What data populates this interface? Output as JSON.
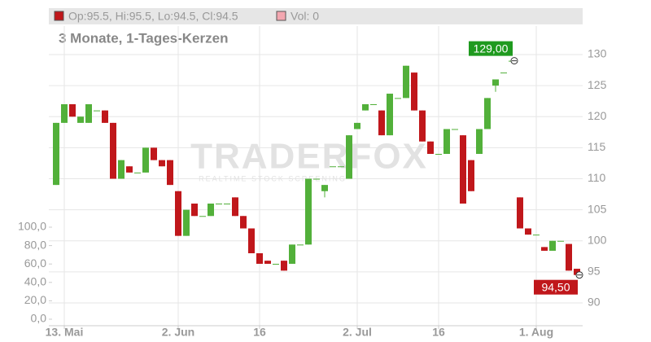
{
  "chart_data": {
    "type": "candlestick",
    "legend": "Op:95.5, Hi:95.5, Lo:94.5, Cl:94.5",
    "volume_legend": "Vol: 0",
    "subtitle": "3 Monate, 1-Tages-Kerzen",
    "watermark": "TRADERFOX",
    "watermark_sub": "REALTIME STOCK SCREENING",
    "up_color": "#52b03a",
    "down_color": "#c0171b",
    "categories": [
      null,
      "13. Mai",
      null,
      null,
      null,
      null,
      null,
      null,
      null,
      null,
      null,
      null,
      null,
      null,
      null,
      "2. Jun",
      null,
      null,
      null,
      null,
      null,
      null,
      null,
      null,
      null,
      "16",
      null,
      null,
      null,
      null,
      null,
      null,
      null,
      null,
      null,
      null,
      null,
      "2. Jul",
      null,
      null,
      null,
      null,
      null,
      null,
      null,
      null,
      null,
      "16",
      null,
      null,
      null,
      null,
      null,
      null,
      null,
      null,
      null,
      null,
      null,
      "1. Aug",
      null,
      null,
      null,
      null,
      null
    ],
    "open": [
      109,
      119,
      122,
      119,
      119,
      121,
      121,
      119,
      110,
      112,
      111,
      111,
      115,
      113,
      113,
      108,
      100.8,
      106,
      104,
      104,
      106,
      106,
      107,
      104,
      102,
      98,
      96.8,
      96.3,
      96.8,
      96.3,
      99.4,
      99.4,
      110,
      108,
      112,
      112,
      110,
      118,
      121,
      122,
      121,
      117,
      123,
      123,
      127.1,
      121,
      116,
      114,
      114,
      118,
      117,
      113,
      114,
      118,
      125,
      127.1,
      129,
      107,
      102,
      101,
      99,
      98.4,
      100,
      99.5,
      95.5
    ],
    "high": [
      119,
      122,
      122,
      120,
      122,
      121,
      121,
      119,
      113,
      112,
      111,
      115,
      115,
      113,
      113,
      108,
      105,
      106,
      104,
      106,
      106,
      106,
      107,
      104,
      102,
      98,
      96.8,
      96.3,
      96.8,
      99.4,
      99.4,
      110,
      110,
      109,
      112,
      112,
      117,
      119,
      122,
      122,
      121,
      123.7,
      123,
      128.2,
      127.1,
      121,
      116,
      114,
      118,
      118,
      117,
      113,
      118,
      123,
      126,
      127.1,
      129,
      107,
      102,
      101,
      99,
      100,
      100,
      99.5,
      95.5
    ],
    "low": [
      109,
      119,
      120,
      119,
      119,
      121,
      119,
      110,
      110,
      111,
      111,
      111,
      113,
      112,
      109,
      100.8,
      100.8,
      104,
      104,
      104,
      106,
      106,
      104,
      102,
      98,
      96.3,
      96.3,
      96.3,
      95.2,
      96.3,
      99.4,
      99.4,
      110,
      107,
      112,
      112,
      110,
      118,
      121,
      122,
      117,
      117,
      123,
      123,
      121,
      116,
      114,
      114,
      114,
      118,
      106,
      108,
      114,
      118,
      124,
      127.1,
      129,
      102,
      101,
      101,
      98.4,
      98.4,
      100,
      95.2,
      94.5
    ],
    "close": [
      119,
      122,
      120,
      120,
      122,
      121,
      119,
      110,
      113,
      111,
      111,
      115,
      113,
      112,
      109,
      100.8,
      105,
      104,
      104,
      106,
      106,
      106,
      104,
      102,
      98,
      96.3,
      96.3,
      96.3,
      95.2,
      99.4,
      99.4,
      110,
      110,
      109,
      112,
      112,
      117,
      119,
      122,
      122,
      117,
      123.7,
      123,
      128.2,
      121,
      116,
      114,
      114,
      118,
      118,
      106,
      108,
      118,
      123,
      126,
      127.1,
      129,
      102,
      101,
      101,
      98.4,
      100,
      100,
      95.2,
      94.5
    ],
    "ylim": [
      86.33,
      134.59
    ],
    "yticks": [
      90,
      95,
      100,
      105,
      110,
      115,
      120,
      125,
      130
    ],
    "y2lim": [
      0,
      100
    ],
    "y2ticks": [
      {
        "value": 0,
        "label": "0,0"
      },
      {
        "value": 20,
        "label": "20,0"
      },
      {
        "value": 40,
        "label": "40,0"
      },
      {
        "value": 60,
        "label": "60,0"
      },
      {
        "value": 80,
        "label": "80,0"
      },
      {
        "value": 100,
        "label": "100,0"
      }
    ],
    "annotations": [
      {
        "value": 129,
        "label": "129,00",
        "color": "#1f9a1f"
      },
      {
        "value": 94.5,
        "label": "94,50",
        "color": "#c0171b"
      }
    ],
    "grid": true
  }
}
